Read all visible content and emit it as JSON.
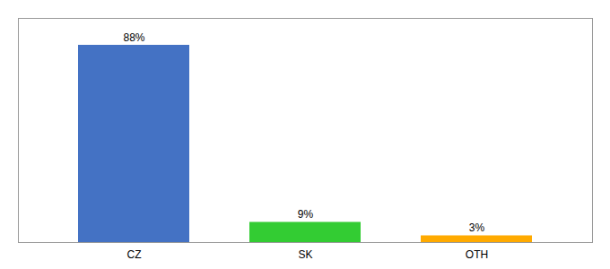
{
  "chart_data": {
    "type": "bar",
    "categories": [
      "CZ",
      "SK",
      "OTH"
    ],
    "values": [
      88,
      9,
      3
    ],
    "value_labels": [
      "88%",
      "9%",
      "3%"
    ],
    "colors": [
      "#4472c4",
      "#33cc33",
      "#ffaa00"
    ],
    "ylim": [
      0,
      100
    ],
    "yticks": [],
    "data_labels": true,
    "tick_labels": "x",
    "grid": false
  }
}
